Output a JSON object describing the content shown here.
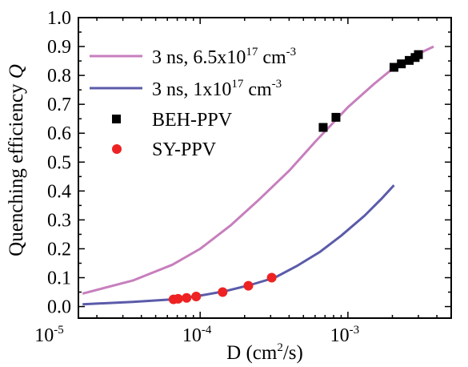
{
  "chart_data": {
    "type": "line",
    "xscale": "log",
    "xlim": [
      1.5e-05,
      0.005
    ],
    "ylim": [
      -0.04,
      1.0
    ],
    "xlabel": {
      "base": "D (cm",
      "sup": "2",
      "tail": "/s)"
    },
    "ylabel": {
      "main": "Quenching efficiency ",
      "symbol": "Q"
    },
    "x_major_ticks": [
      {
        "value": 1e-05,
        "base": "10",
        "exp": "-5"
      },
      {
        "value": 0.0001,
        "base": "10",
        "exp": "-4"
      },
      {
        "value": 0.001,
        "base": "10",
        "exp": "-3"
      }
    ],
    "y_ticks": [
      "0.0",
      "0.1",
      "0.2",
      "0.3",
      "0.4",
      "0.5",
      "0.6",
      "0.7",
      "0.8",
      "0.9",
      "1.0"
    ],
    "legend_position": "top-left",
    "series": [
      {
        "kind": "line",
        "name": {
          "main": "3 ns, 6.5x10",
          "sup": "17",
          "mid": " cm",
          "sup2": "-3"
        },
        "color": "#c77fbd",
        "x": [
          1.6e-05,
          3.5e-05,
          6.5e-05,
          0.0001,
          0.00016,
          0.00025,
          0.0004,
          0.0006,
          0.001,
          0.0015,
          0.0022,
          0.003,
          0.0038
        ],
        "y": [
          0.045,
          0.09,
          0.145,
          0.2,
          0.28,
          0.37,
          0.47,
          0.57,
          0.69,
          0.77,
          0.84,
          0.875,
          0.9
        ]
      },
      {
        "kind": "line",
        "name": {
          "main": "3 ns, 1x10",
          "sup": "17",
          "mid": " cm",
          "sup2": "-3"
        },
        "color": "#5b5baa",
        "x": [
          1.6e-05,
          3.5e-05,
          6.5e-05,
          0.0001,
          0.00015,
          0.00022,
          0.00032,
          0.00045,
          0.00065,
          0.0009,
          0.0013,
          0.0017,
          0.00205
        ],
        "y": [
          0.008,
          0.016,
          0.025,
          0.038,
          0.054,
          0.075,
          0.1,
          0.14,
          0.19,
          0.245,
          0.315,
          0.375,
          0.42
        ]
      },
      {
        "kind": "scatter",
        "marker": "square",
        "name": "BEH-PPV",
        "color": "#000000",
        "x": [
          0.00068,
          0.00083,
          0.00205,
          0.0023,
          0.0026,
          0.00285,
          0.003
        ],
        "y": [
          0.62,
          0.655,
          0.828,
          0.84,
          0.852,
          0.862,
          0.872
        ]
      },
      {
        "kind": "scatter",
        "marker": "circle",
        "name": "SY-PPV",
        "color": "#ee2222",
        "x": [
          6.6e-05,
          7.1e-05,
          8.1e-05,
          9.4e-05,
          0.000142,
          0.000212,
          0.000305
        ],
        "y": [
          0.025,
          0.027,
          0.03,
          0.035,
          0.05,
          0.072,
          0.1
        ]
      }
    ]
  }
}
